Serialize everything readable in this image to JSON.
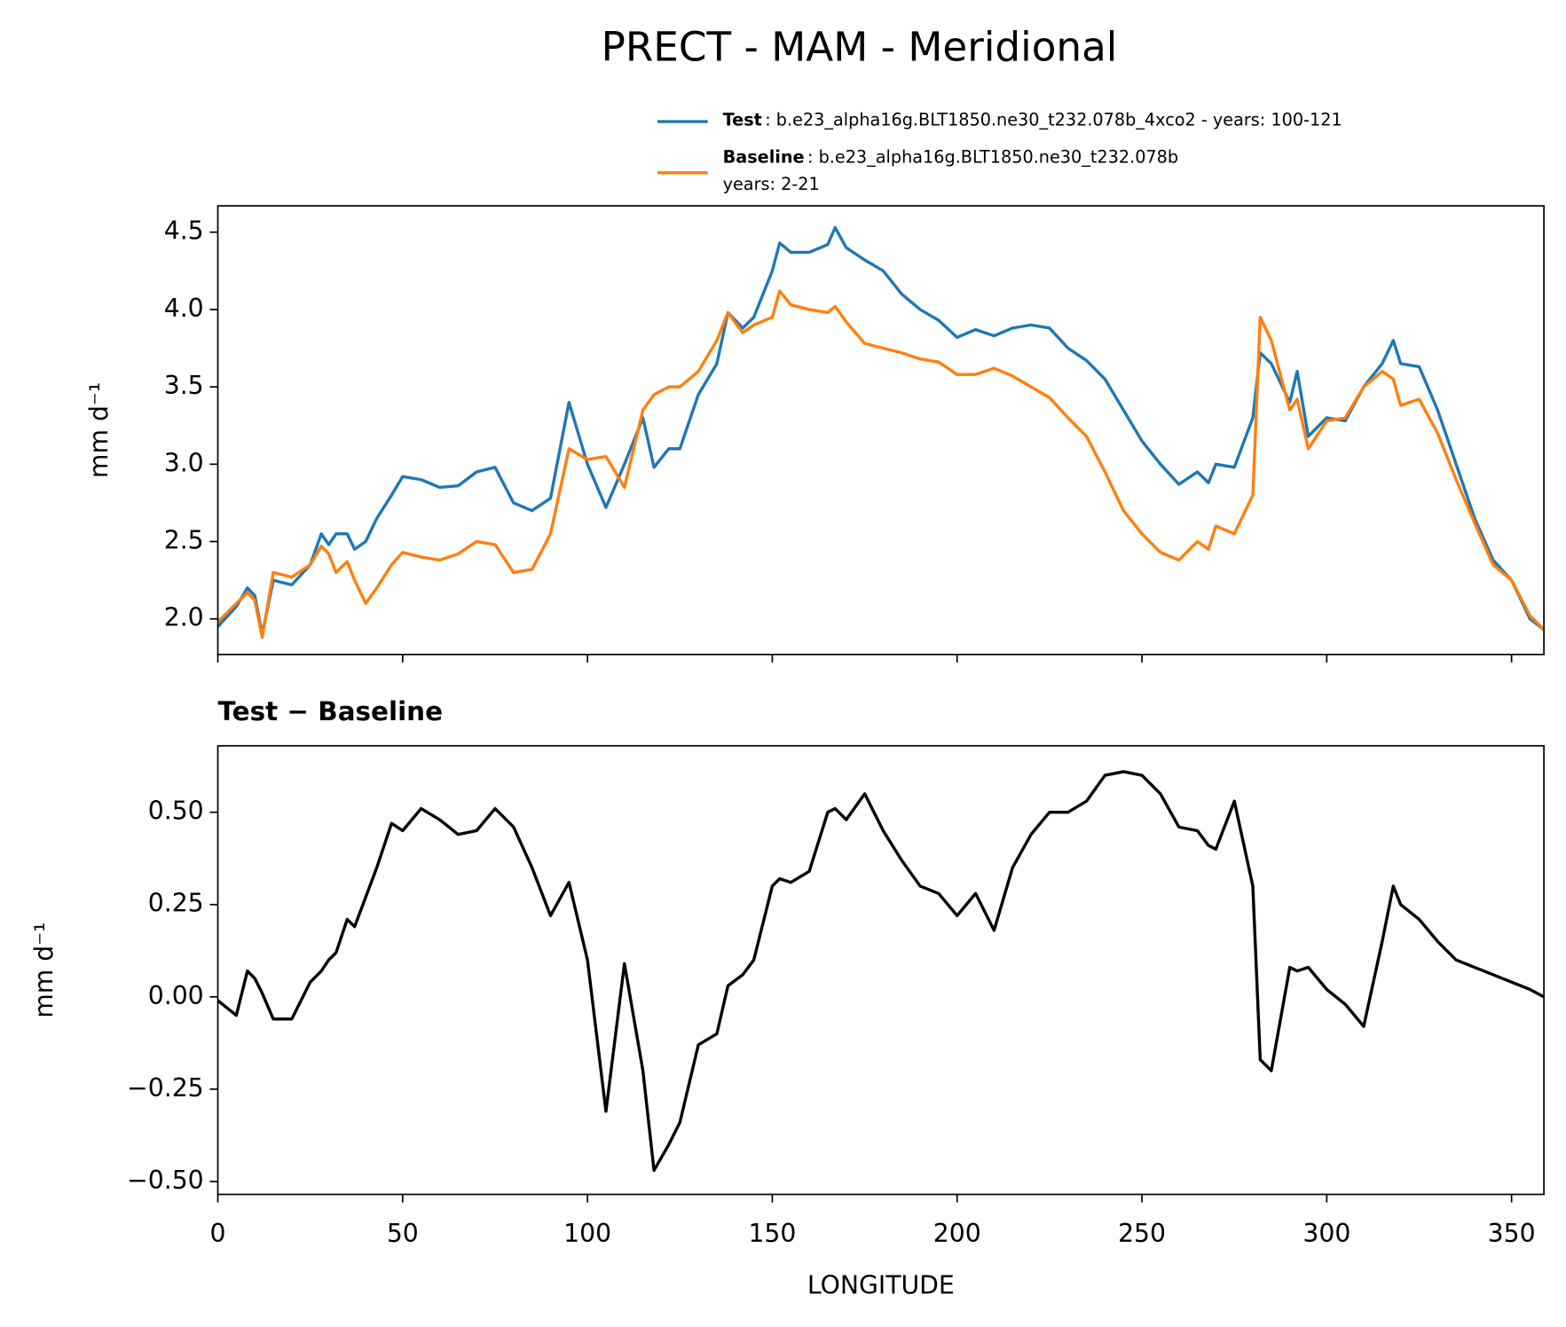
{
  "chart_data": [
    {
      "type": "line",
      "title": "PRECT - MAM - Meridional",
      "ylabel": "mm d⁻¹",
      "x": [
        0,
        5,
        8,
        10,
        12,
        15,
        20,
        25,
        28,
        30,
        32,
        35,
        37,
        40,
        43,
        47,
        50,
        55,
        60,
        65,
        70,
        75,
        80,
        85,
        90,
        95,
        100,
        105,
        110,
        115,
        118,
        122,
        125,
        130,
        135,
        138,
        142,
        145,
        150,
        152,
        155,
        160,
        165,
        167,
        170,
        175,
        180,
        185,
        190,
        195,
        200,
        205,
        210,
        215,
        220,
        225,
        230,
        235,
        240,
        245,
        250,
        255,
        260,
        265,
        268,
        270,
        275,
        280,
        282,
        285,
        290,
        292,
        295,
        300,
        305,
        310,
        315,
        318,
        320,
        325,
        330,
        335,
        340,
        345,
        350,
        355,
        358.75
      ],
      "series": [
        {
          "name": "Test",
          "description": [
            ": b.e23_alpha16g.BLT1850.ne30_t232.078b_4xco2 - years: 100-121"
          ],
          "color": "#1f77b4",
          "values": [
            1.95,
            2.08,
            2.2,
            2.15,
            1.9,
            2.25,
            2.22,
            2.35,
            2.55,
            2.48,
            2.55,
            2.55,
            2.45,
            2.5,
            2.65,
            2.8,
            2.92,
            2.9,
            2.85,
            2.86,
            2.95,
            2.98,
            2.75,
            2.7,
            2.78,
            3.4,
            3.0,
            2.72,
            3.0,
            3.3,
            2.98,
            3.1,
            3.1,
            3.45,
            3.65,
            3.98,
            3.88,
            3.95,
            4.25,
            4.43,
            4.37,
            4.37,
            4.42,
            4.53,
            4.4,
            4.32,
            4.25,
            4.1,
            4.0,
            3.93,
            3.82,
            3.87,
            3.83,
            3.88,
            3.9,
            3.88,
            3.75,
            3.67,
            3.55,
            3.35,
            3.15,
            3.0,
            2.87,
            2.95,
            2.88,
            3.0,
            2.98,
            3.3,
            3.72,
            3.65,
            3.4,
            3.6,
            3.18,
            3.3,
            3.28,
            3.5,
            3.65,
            3.8,
            3.65,
            3.63,
            3.35,
            3.0,
            2.65,
            2.38,
            2.25,
            2.0,
            1.93
          ]
        },
        {
          "name": "Baseline",
          "description": [
            ": b.e23_alpha16g.BLT1850.ne30_t232.078b",
            "years: 2-21"
          ],
          "color": "#ff7f0e",
          "values": [
            1.98,
            2.1,
            2.17,
            2.12,
            1.88,
            2.3,
            2.27,
            2.35,
            2.47,
            2.42,
            2.3,
            2.37,
            2.25,
            2.1,
            2.2,
            2.35,
            2.43,
            2.4,
            2.38,
            2.42,
            2.5,
            2.48,
            2.3,
            2.32,
            2.55,
            3.1,
            3.03,
            3.05,
            2.85,
            3.35,
            3.45,
            3.5,
            3.5,
            3.6,
            3.8,
            3.98,
            3.85,
            3.9,
            3.95,
            4.12,
            4.03,
            4.0,
            3.98,
            4.02,
            3.92,
            3.78,
            3.75,
            3.72,
            3.68,
            3.66,
            3.58,
            3.58,
            3.62,
            3.57,
            3.5,
            3.43,
            3.3,
            3.18,
            2.95,
            2.7,
            2.55,
            2.43,
            2.38,
            2.5,
            2.45,
            2.6,
            2.55,
            2.8,
            3.95,
            3.8,
            3.35,
            3.42,
            3.1,
            3.28,
            3.3,
            3.5,
            3.6,
            3.55,
            3.38,
            3.42,
            3.2,
            2.9,
            2.62,
            2.35,
            2.25,
            2.02,
            1.93
          ]
        }
      ],
      "xlim": [
        0,
        358.75
      ],
      "ylim": [
        1.77,
        4.67
      ],
      "xticks": [
        0,
        50,
        100,
        150,
        200,
        250,
        300,
        350
      ],
      "yticks": [
        {
          "value": 2.0,
          "label": "2.0"
        },
        2.5,
        {
          "value": 3.0,
          "label": "3.0"
        },
        3.5,
        {
          "value": 4.0,
          "label": "4.0"
        },
        4.5
      ]
    },
    {
      "type": "line",
      "title": "Test − Baseline",
      "ylabel": "mm d⁻¹",
      "xlabel": "LONGITUDE",
      "x": [
        0,
        5,
        8,
        10,
        12,
        15,
        20,
        25,
        28,
        30,
        32,
        35,
        37,
        40,
        43,
        47,
        50,
        55,
        60,
        65,
        70,
        75,
        80,
        85,
        90,
        95,
        100,
        105,
        110,
        115,
        118,
        122,
        125,
        130,
        135,
        138,
        142,
        145,
        150,
        152,
        155,
        160,
        165,
        167,
        170,
        175,
        180,
        185,
        190,
        195,
        200,
        205,
        210,
        215,
        220,
        225,
        230,
        235,
        240,
        245,
        250,
        255,
        260,
        265,
        268,
        270,
        275,
        280,
        282,
        285,
        290,
        292,
        295,
        300,
        305,
        310,
        315,
        318,
        320,
        325,
        330,
        335,
        340,
        345,
        350,
        355,
        358.75
      ],
      "series": [
        {
          "color": "#000000",
          "values": [
            -0.01,
            -0.05,
            0.07,
            0.05,
            0.01,
            -0.06,
            -0.06,
            0.04,
            0.07,
            0.1,
            0.12,
            0.21,
            0.19,
            0.27,
            0.35,
            0.47,
            0.45,
            0.51,
            0.48,
            0.44,
            0.45,
            0.51,
            0.46,
            0.35,
            0.22,
            0.31,
            0.1,
            -0.31,
            0.09,
            -0.2,
            -0.47,
            -0.4,
            -0.34,
            -0.13,
            -0.1,
            0.03,
            0.06,
            0.1,
            0.3,
            0.32,
            0.31,
            0.34,
            0.5,
            0.51,
            0.48,
            0.55,
            0.45,
            0.37,
            0.3,
            0.28,
            0.22,
            0.28,
            0.18,
            0.35,
            0.44,
            0.5,
            0.5,
            0.53,
            0.6,
            0.61,
            0.6,
            0.55,
            0.46,
            0.45,
            0.41,
            0.4,
            0.53,
            0.3,
            -0.17,
            -0.2,
            0.08,
            0.07,
            0.08,
            0.02,
            -0.02,
            -0.08,
            0.15,
            0.3,
            0.25,
            0.21,
            0.15,
            0.1,
            0.08,
            0.06,
            0.04,
            0.02,
            0.0
          ]
        }
      ],
      "xlim": [
        0,
        358.75
      ],
      "ylim": [
        -0.535,
        0.68
      ],
      "xticks": [
        0,
        50,
        100,
        150,
        200,
        250,
        300,
        350
      ],
      "yticks": [
        {
          "value": -0.5,
          "label": "−0.50"
        },
        {
          "value": -0.25,
          "label": "−0.25"
        },
        {
          "value": 0,
          "label": "0.00"
        },
        0.25,
        {
          "value": 0.5,
          "label": "0.50"
        }
      ]
    }
  ]
}
